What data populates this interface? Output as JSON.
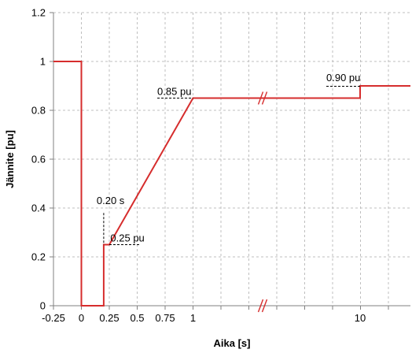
{
  "chart_data": {
    "type": "line",
    "xlabel": "Aika [s]",
    "ylabel": "Jännite [pu]",
    "ylim": [
      0,
      1.2
    ],
    "y_ticks": [
      "0",
      "0.2",
      "0.4",
      "0.6",
      "0.8",
      "1",
      "1.2"
    ],
    "x_axis_break": true,
    "x_ticks": [
      {
        "value": -0.25,
        "label": "-0.25"
      },
      {
        "value": 0,
        "label": "0"
      },
      {
        "value": 0.25,
        "label": "0.25"
      },
      {
        "value": 0.5,
        "label": "0.5"
      },
      {
        "value": 0.75,
        "label": "0.75"
      },
      {
        "value": 1,
        "label": "1"
      },
      {
        "value": 10,
        "label": "10"
      }
    ],
    "grid": true,
    "series": [
      {
        "color": "#d62d2d",
        "points": [
          [
            -0.25,
            1.0
          ],
          [
            0,
            1.0
          ],
          [
            0,
            0.0
          ],
          [
            0.2,
            0.0
          ],
          [
            0.2,
            0.25
          ],
          [
            0.25,
            0.25
          ],
          [
            1.0,
            0.85
          ],
          [
            10.0,
            0.85
          ],
          [
            10.0,
            0.9
          ],
          [
            12.0,
            0.9
          ]
        ]
      }
    ],
    "annotations": [
      {
        "text": "0.85 pu",
        "kind": "level"
      },
      {
        "text": "0.90 pu",
        "kind": "level"
      },
      {
        "text": "0.20 s",
        "kind": "time"
      },
      {
        "text": "0.25 pu",
        "kind": "level"
      }
    ]
  }
}
